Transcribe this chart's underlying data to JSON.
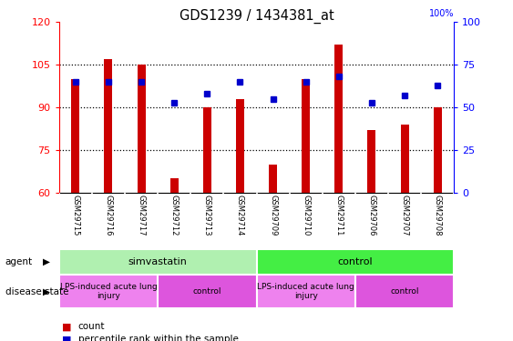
{
  "title": "GDS1239 / 1434381_at",
  "samples": [
    "GSM29715",
    "GSM29716",
    "GSM29717",
    "GSM29712",
    "GSM29713",
    "GSM29714",
    "GSM29709",
    "GSM29710",
    "GSM29711",
    "GSM29706",
    "GSM29707",
    "GSM29708"
  ],
  "counts": [
    100,
    107,
    105,
    65,
    90,
    93,
    70,
    100,
    112,
    82,
    84,
    90
  ],
  "percentiles": [
    65,
    65,
    65,
    53,
    58,
    65,
    55,
    65,
    68,
    53,
    57,
    63
  ],
  "ylim_left": [
    60,
    120
  ],
  "ylim_right": [
    0,
    100
  ],
  "yticks_left": [
    60,
    75,
    90,
    105,
    120
  ],
  "yticks_right": [
    0,
    25,
    50,
    75,
    100
  ],
  "bar_color": "#cc0000",
  "dot_color": "#0000cc",
  "agent_groups": [
    {
      "label": "simvastatin",
      "start": 0,
      "end": 6,
      "color": "#b0f0b0"
    },
    {
      "label": "control",
      "start": 6,
      "end": 12,
      "color": "#44ee44"
    }
  ],
  "disease_groups": [
    {
      "label": "LPS-induced acute lung\ninjury",
      "start": 0,
      "end": 3,
      "color": "#ee82ee"
    },
    {
      "label": "control",
      "start": 3,
      "end": 6,
      "color": "#dd55dd"
    },
    {
      "label": "LPS-induced acute lung\ninjury",
      "start": 6,
      "end": 9,
      "color": "#ee82ee"
    },
    {
      "label": "control",
      "start": 9,
      "end": 12,
      "color": "#dd55dd"
    }
  ],
  "legend_count_label": "count",
  "legend_pct_label": "percentile rank within the sample",
  "agent_label": "agent",
  "disease_label": "disease state",
  "background_color": "#ffffff",
  "tick_area_color": "#cccccc",
  "bar_width": 0.25
}
